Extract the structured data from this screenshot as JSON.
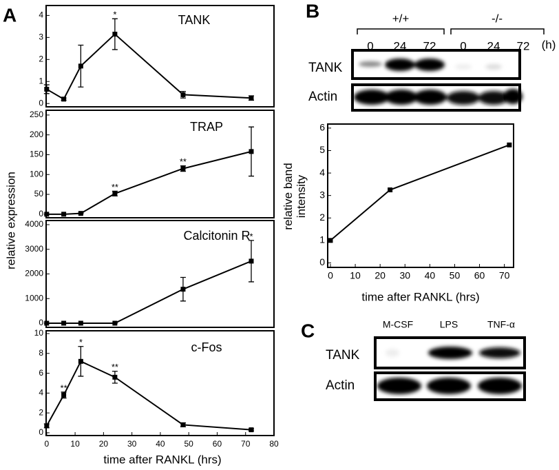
{
  "panel_labels": [
    "A",
    "B",
    "C"
  ],
  "panel_a": {
    "ylabel": "relative expression",
    "xlabel": "time after RANKL (hrs)"
  },
  "chart_data": [
    {
      "type": "line",
      "title": "TANK",
      "x": [
        0,
        6,
        12,
        24,
        48,
        72
      ],
      "values": [
        0.65,
        0.2,
        1.7,
        3.15,
        0.4,
        0.25
      ],
      "errors": [
        0.2,
        0.05,
        0.95,
        0.7,
        0.15,
        0.1
      ],
      "color": "#000000",
      "xlim": [
        -0.2,
        80
      ],
      "ylim": [
        -0.15,
        4.45
      ],
      "yticks": [
        0,
        1,
        2,
        3,
        4
      ],
      "annotations": [
        {
          "x": 24,
          "text": "*"
        }
      ]
    },
    {
      "type": "line",
      "title": "TRAP",
      "x": [
        0,
        6,
        12,
        24,
        48,
        72
      ],
      "values": [
        0,
        0,
        2,
        52,
        115,
        158
      ],
      "errors": [
        0,
        0,
        1,
        6,
        7,
        62
      ],
      "color": "#000000",
      "xlim": [
        -0.2,
        80
      ],
      "ylim": [
        -9,
        262
      ],
      "yticks": [
        0,
        50,
        100,
        150,
        200,
        250
      ],
      "annotations": [
        {
          "x": 24,
          "text": "**"
        },
        {
          "x": 48,
          "text": "**"
        }
      ]
    },
    {
      "type": "line",
      "title": "Calcitonin R",
      "x": [
        0,
        6,
        12,
        24,
        48,
        72
      ],
      "values": [
        0,
        0,
        0,
        0,
        1380,
        2520
      ],
      "errors": [
        0,
        0,
        0,
        0,
        480,
        840
      ],
      "color": "#000000",
      "xlim": [
        -0.2,
        80
      ],
      "ylim": [
        -168,
        4168
      ],
      "yticks": [
        0,
        1000,
        2000,
        3000,
        4000
      ],
      "annotations": [
        {
          "x": 72,
          "text": "*"
        }
      ]
    },
    {
      "type": "line",
      "title": "c-Fos",
      "x": [
        0,
        6,
        12,
        24,
        48,
        72
      ],
      "values": [
        0.7,
        3.8,
        7.2,
        5.6,
        0.8,
        0.3
      ],
      "errors": [
        0.2,
        0.3,
        1.5,
        0.6,
        0.2,
        0.1
      ],
      "color": "#000000",
      "xlim": [
        -0.2,
        80
      ],
      "ylim": [
        -0.28,
        10.28
      ],
      "yticks": [
        0,
        2,
        4,
        6,
        8,
        10
      ],
      "xticks": [
        0,
        10,
        20,
        30,
        40,
        50,
        60,
        70,
        80
      ],
      "annotations": [
        {
          "x": 6,
          "text": "**"
        },
        {
          "x": 12,
          "text": "*"
        },
        {
          "x": 24,
          "text": "**"
        }
      ]
    },
    {
      "type": "line",
      "x": [
        0,
        24,
        72
      ],
      "values": [
        1,
        3.25,
        5.25
      ],
      "color": "#000000",
      "xlim": [
        -1.1,
        73.7
      ],
      "ylim": [
        -0.2,
        6.18
      ],
      "yticks": [
        0,
        1,
        2,
        3,
        4,
        5,
        6
      ],
      "xticks": [
        0,
        10,
        20,
        30,
        40,
        50,
        60,
        70
      ],
      "ylabel": "relative band intensity",
      "xlabel": "time after RANKL (hrs)"
    }
  ],
  "blot_b": {
    "genotypes": [
      "+/+",
      "-/-"
    ],
    "lanes": [
      "0",
      "24",
      "72",
      "0",
      "24",
      "72"
    ],
    "unit": "(h)",
    "rows": [
      "TANK",
      "Actin"
    ]
  },
  "blot_c": {
    "lanes": [
      "M-CSF",
      "LPS",
      "TNF-α"
    ],
    "rows": [
      "TANK",
      "Actin"
    ]
  }
}
